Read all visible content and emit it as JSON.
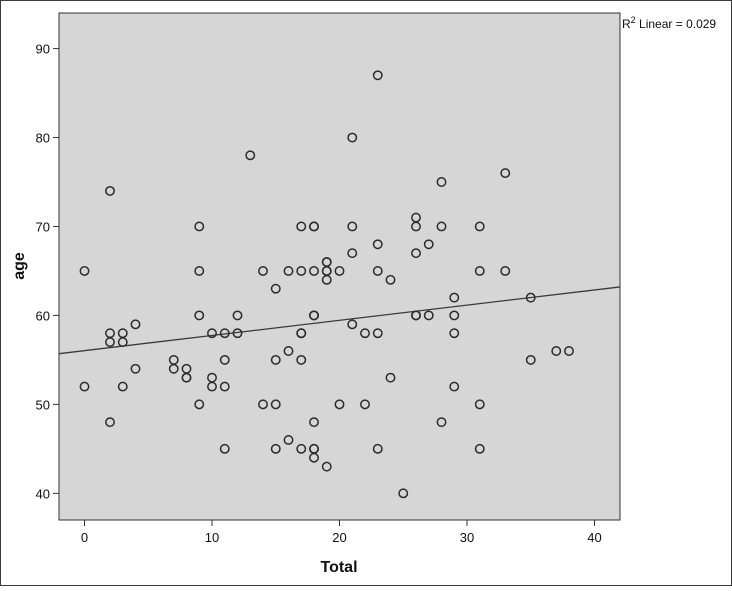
{
  "chart_data": {
    "type": "scatter",
    "title": "",
    "xlabel": "Total",
    "ylabel": "age",
    "xlim": [
      -2,
      42
    ],
    "ylim": [
      37,
      94
    ],
    "xticks": [
      0,
      10,
      20,
      30,
      40
    ],
    "yticks": [
      40,
      50,
      60,
      70,
      80,
      90
    ],
    "grid": false,
    "fit_line": {
      "label": "R2 Linear = 0.029",
      "r2_value": "0.029",
      "points": [
        [
          -2,
          55.7
        ],
        [
          42,
          63.2
        ]
      ]
    },
    "colors": {
      "plot_bg": "#d6d6d6",
      "marker": "#2b2b2b",
      "line": "#3a3a3a"
    },
    "points": [
      [
        0,
        65
      ],
      [
        0,
        52
      ],
      [
        2,
        74
      ],
      [
        2,
        58
      ],
      [
        2,
        57
      ],
      [
        2,
        48
      ],
      [
        3,
        58
      ],
      [
        3,
        57
      ],
      [
        3,
        52
      ],
      [
        4,
        59
      ],
      [
        4,
        54
      ],
      [
        7,
        55
      ],
      [
        7,
        54
      ],
      [
        8,
        54
      ],
      [
        8,
        53
      ],
      [
        8,
        53
      ],
      [
        9,
        70
      ],
      [
        9,
        65
      ],
      [
        9,
        60
      ],
      [
        9,
        50
      ],
      [
        10,
        58
      ],
      [
        10,
        53
      ],
      [
        10,
        52
      ],
      [
        11,
        58
      ],
      [
        11,
        55
      ],
      [
        11,
        52
      ],
      [
        11,
        45
      ],
      [
        12,
        60
      ],
      [
        12,
        58
      ],
      [
        13,
        78
      ],
      [
        14,
        65
      ],
      [
        14,
        50
      ],
      [
        15,
        63
      ],
      [
        15,
        55
      ],
      [
        15,
        50
      ],
      [
        15,
        45
      ],
      [
        16,
        65
      ],
      [
        16,
        56
      ],
      [
        16,
        46
      ],
      [
        17,
        70
      ],
      [
        17,
        65
      ],
      [
        17,
        58
      ],
      [
        17,
        58
      ],
      [
        17,
        55
      ],
      [
        17,
        45
      ],
      [
        18,
        70
      ],
      [
        18,
        70
      ],
      [
        18,
        65
      ],
      [
        18,
        60
      ],
      [
        18,
        60
      ],
      [
        18,
        48
      ],
      [
        18,
        45
      ],
      [
        18,
        45
      ],
      [
        18,
        44
      ],
      [
        19,
        66
      ],
      [
        19,
        66
      ],
      [
        19,
        65
      ],
      [
        19,
        65
      ],
      [
        19,
        64
      ],
      [
        19,
        43
      ],
      [
        20,
        65
      ],
      [
        20,
        50
      ],
      [
        21,
        80
      ],
      [
        21,
        70
      ],
      [
        21,
        67
      ],
      [
        21,
        59
      ],
      [
        22,
        58
      ],
      [
        22,
        50
      ],
      [
        23,
        87
      ],
      [
        23,
        68
      ],
      [
        23,
        65
      ],
      [
        23,
        58
      ],
      [
        23,
        45
      ],
      [
        24,
        64
      ],
      [
        24,
        53
      ],
      [
        25,
        40
      ],
      [
        26,
        71
      ],
      [
        26,
        70
      ],
      [
        26,
        67
      ],
      [
        26,
        60
      ],
      [
        26,
        60
      ],
      [
        27,
        68
      ],
      [
        27,
        60
      ],
      [
        28,
        75
      ],
      [
        28,
        70
      ],
      [
        28,
        48
      ],
      [
        29,
        62
      ],
      [
        29,
        60
      ],
      [
        29,
        58
      ],
      [
        29,
        52
      ],
      [
        31,
        70
      ],
      [
        31,
        65
      ],
      [
        31,
        50
      ],
      [
        31,
        45
      ],
      [
        33,
        76
      ],
      [
        33,
        65
      ],
      [
        35,
        62
      ],
      [
        35,
        55
      ],
      [
        37,
        56
      ],
      [
        38,
        56
      ]
    ]
  }
}
